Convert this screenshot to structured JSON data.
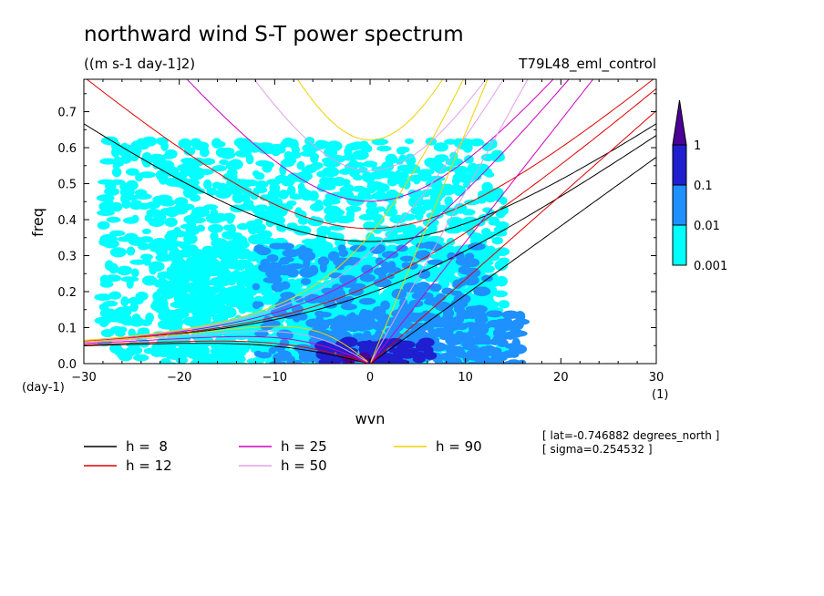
{
  "chart_data": {
    "type": "heatmap",
    "title": "northward wind S-T power spectrum",
    "subtitle": "((m s-1 day-1]2)",
    "experiment": "T79L48_eml_control",
    "xlabel": "wvn",
    "ylabel": "freq",
    "x_unit": "(1)",
    "y_unit": "(day-1)",
    "xlim": [
      -30,
      30
    ],
    "ylim": [
      0,
      0.79
    ],
    "xticks": [
      {
        "value": -30,
        "label": "−30"
      },
      {
        "value": -20,
        "label": "−20"
      },
      {
        "value": -10,
        "label": "−10"
      },
      {
        "value": 0,
        "label": "0"
      },
      {
        "value": 10,
        "label": "10"
      },
      {
        "value": 20,
        "label": "20"
      },
      {
        "value": 30,
        "label": "30"
      }
    ],
    "yticks": [
      {
        "value": 0.0,
        "label": "0.0"
      },
      {
        "value": 0.1,
        "label": "0.1"
      },
      {
        "value": 0.2,
        "label": "0.2"
      },
      {
        "value": 0.3,
        "label": "0.3"
      },
      {
        "value": 0.4,
        "label": "0.4"
      },
      {
        "value": 0.5,
        "label": "0.5"
      },
      {
        "value": 0.6,
        "label": "0.6"
      },
      {
        "value": 0.7,
        "label": "0.7"
      }
    ],
    "colorbar": {
      "levels": [
        {
          "label": "0.001",
          "value": 0.001,
          "color": "#00ffff"
        },
        {
          "label": "0.01",
          "value": 0.01,
          "color": "#1e90ff"
        },
        {
          "label": "0.1",
          "value": 0.1,
          "color": "#1f1fd0"
        },
        {
          "label": "1",
          "value": 1,
          "color": "#4b0096"
        }
      ]
    },
    "regions": [
      {
        "level": 0,
        "x": [
          -28,
          14
        ],
        "y": [
          0.02,
          0.62
        ],
        "density": 0.48,
        "seed": 7
      },
      {
        "level": 0,
        "x": [
          -22,
          12
        ],
        "y": [
          0.0,
          0.32
        ],
        "density": 0.72,
        "seed": 11
      },
      {
        "level": 1,
        "x": [
          -12,
          12
        ],
        "y": [
          0.0,
          0.33
        ],
        "density": 0.28,
        "seed": 23
      },
      {
        "level": 1,
        "x": [
          -6,
          16
        ],
        "y": [
          0.0,
          0.14
        ],
        "density": 0.65,
        "seed": 31
      },
      {
        "level": 2,
        "x": [
          -5,
          6
        ],
        "y": [
          0.0,
          0.06
        ],
        "density": 0.75,
        "seed": 41
      },
      {
        "level": 3,
        "x": [
          -3,
          0
        ],
        "y": [
          0.0,
          0.025
        ],
        "density": 0.6,
        "seed": 53
      }
    ],
    "dispersion_curves": [
      {
        "label": "h =  8",
        "h": 8,
        "color": "#000000"
      },
      {
        "label": "h = 12",
        "h": 12,
        "color": "#e00000"
      },
      {
        "label": "h = 25",
        "h": 25,
        "color": "#d000c0"
      },
      {
        "label": "h = 50",
        "h": 50,
        "color": "#e0a0e8"
      },
      {
        "label": "h = 90",
        "h": 90,
        "color": "#f0d000"
      }
    ],
    "annotations": [
      "[ lat=-0.746882 degrees_north ]",
      "[ sigma=0.254532 ]"
    ]
  }
}
